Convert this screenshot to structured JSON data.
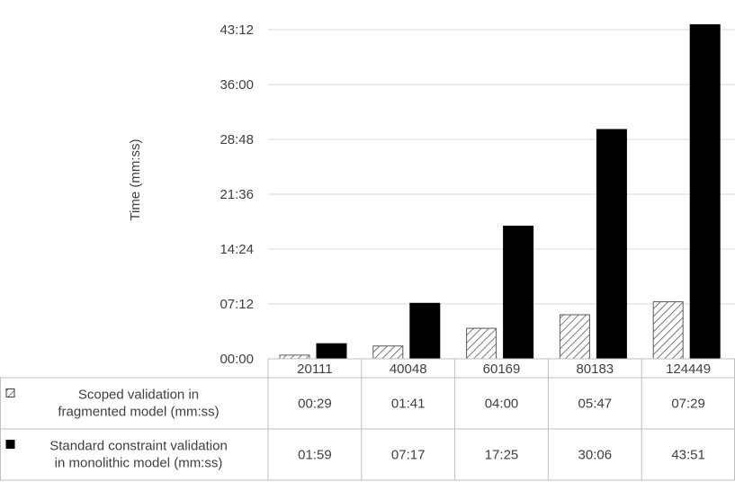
{
  "chart_data": {
    "type": "bar",
    "ylabel": "Time (mm:ss)",
    "yticks": [
      "00:00",
      "07:12",
      "14:24",
      "21:36",
      "28:48",
      "36:00",
      "43:12"
    ],
    "ylim_seconds": [
      0,
      2592
    ],
    "categories": [
      "20111",
      "40048",
      "60169",
      "80183",
      "124449"
    ],
    "series": [
      {
        "name": "Scoped validation in fragmented model (mm:ss)",
        "name_lines": [
          "Scoped validation in",
          "fragmented model (mm:ss)"
        ],
        "pattern": "hatched",
        "labels": [
          "00:29",
          "01:41",
          "04:00",
          "05:47",
          "07:29"
        ],
        "values_seconds": [
          29,
          101,
          240,
          347,
          449
        ]
      },
      {
        "name": "Standard constraint validation in monolithic model (mm:ss)",
        "name_lines": [
          "Standard constraint validation",
          "in monolithic model (mm:ss)"
        ],
        "pattern": "solid",
        "color": "#000000",
        "labels": [
          "01:59",
          "07:17",
          "17:25",
          "30:06",
          "43:51"
        ],
        "values_seconds": [
          119,
          437,
          1045,
          1806,
          2631
        ]
      }
    ],
    "grid": true,
    "legend": "data table below chart"
  }
}
